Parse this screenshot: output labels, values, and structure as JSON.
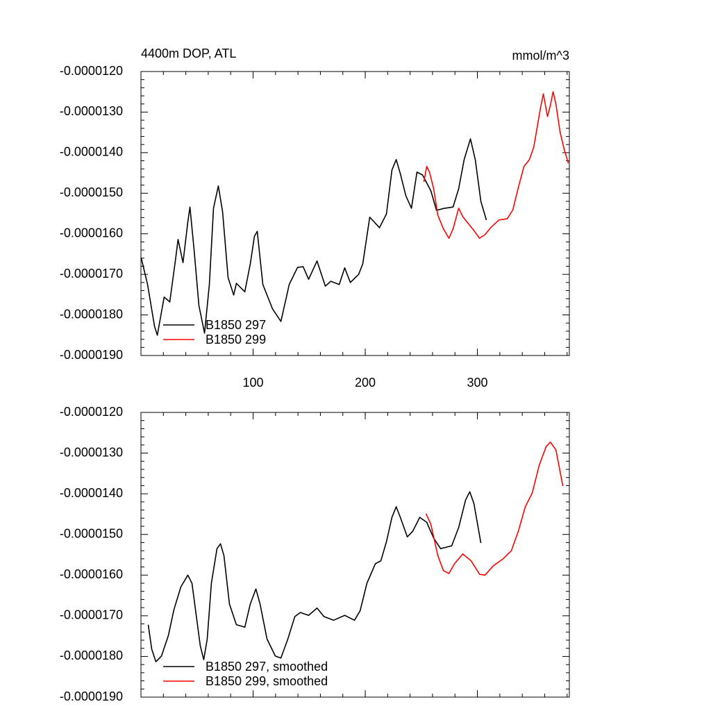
{
  "chart_data": [
    {
      "type": "line",
      "title": "4400m DOP, ATL",
      "right_title": "mmol/m^3",
      "xlim": [
        0,
        382
      ],
      "xticks": [
        100,
        200,
        300
      ],
      "xtick_labels": true,
      "ylim": [
        -1.9e-05,
        -1.2e-05
      ],
      "yticks": [
        {
          "value": -1.9e-05,
          "label": "-0.0000190"
        },
        {
          "value": -1.8e-05,
          "label": "-0.0000180"
        },
        {
          "value": -1.7e-05,
          "label": "-0.0000170"
        },
        {
          "value": -1.6e-05,
          "label": "-0.0000160"
        },
        {
          "value": -1.5e-05,
          "label": "-0.0000150"
        },
        {
          "value": -1.4e-05,
          "label": "-0.0000140"
        },
        {
          "value": -1.3e-05,
          "label": "-0.0000130"
        },
        {
          "value": -1.2e-05,
          "label": "-0.0000120"
        }
      ],
      "legend": "lower left",
      "series": [
        {
          "name": "B1850 297",
          "color": "#000000",
          "x": [
            0.3,
            5.9,
            12.1,
            14.6,
            20.7,
            25.7,
            30.7,
            33.1,
            37.5,
            41.8,
            43.7,
            47.4,
            51.7,
            56.7,
            61.0,
            64.7,
            69.0,
            72.8,
            77.7,
            82.7,
            85.1,
            92.6,
            97.5,
            101.2,
            103.7,
            108.7,
            117.3,
            124.8,
            132.2,
            139.6,
            144.6,
            149.5,
            157.0,
            164.4,
            169.3,
            176.8,
            181.7,
            186.7,
            194.1,
            197.8,
            204.0,
            212.7,
            218.9,
            223.8,
            227.6,
            231.3,
            236.2,
            241.2,
            246.1,
            251.1,
            258.5,
            263.5,
            270.9,
            278.3,
            283.3,
            288.2,
            293.8,
            298.1,
            303.1,
            308.0
          ],
          "values": [
            -1.66e-05,
            -1.725e-05,
            -1.828e-05,
            -1.85e-05,
            -1.756e-05,
            -1.768e-05,
            -1.666e-05,
            -1.614e-05,
            -1.671e-05,
            -1.571e-05,
            -1.534e-05,
            -1.64e-05,
            -1.777e-05,
            -1.845e-05,
            -1.725e-05,
            -1.537e-05,
            -1.482e-05,
            -1.546e-05,
            -1.708e-05,
            -1.751e-05,
            -1.722e-05,
            -1.743e-05,
            -1.674e-05,
            -1.606e-05,
            -1.594e-05,
            -1.725e-05,
            -1.785e-05,
            -1.816e-05,
            -1.725e-05,
            -1.683e-05,
            -1.681e-05,
            -1.712e-05,
            -1.667e-05,
            -1.729e-05,
            -1.717e-05,
            -1.725e-05,
            -1.684e-05,
            -1.72e-05,
            -1.7e-05,
            -1.674e-05,
            -1.559e-05,
            -1.585e-05,
            -1.551e-05,
            -1.443e-05,
            -1.417e-05,
            -1.452e-05,
            -1.506e-05,
            -1.537e-05,
            -1.448e-05,
            -1.455e-05,
            -1.494e-05,
            -1.542e-05,
            -1.537e-05,
            -1.534e-05,
            -1.489e-05,
            -1.417e-05,
            -1.366e-05,
            -1.417e-05,
            -1.52e-05,
            -1.566e-05
          ]
        },
        {
          "name": "B1850 299",
          "color": "#ff0000",
          "x": [
            252.3,
            254.8,
            257.3,
            261.0,
            264.7,
            269.7,
            274.6,
            278.3,
            283.3,
            287.0,
            292.0,
            296.9,
            301.9,
            306.8,
            311.8,
            319.2,
            326.6,
            331.6,
            336.5,
            341.5,
            346.4,
            350.2,
            352.6,
            356.3,
            358.8,
            362.5,
            365.0,
            367.5,
            370.0,
            373.7,
            377.4,
            381.1
          ],
          "values": [
            -1.472e-05,
            -1.434e-05,
            -1.448e-05,
            -1.489e-05,
            -1.554e-05,
            -1.588e-05,
            -1.611e-05,
            -1.588e-05,
            -1.537e-05,
            -1.558e-05,
            -1.575e-05,
            -1.592e-05,
            -1.611e-05,
            -1.602e-05,
            -1.585e-05,
            -1.566e-05,
            -1.563e-05,
            -1.541e-05,
            -1.486e-05,
            -1.434e-05,
            -1.417e-05,
            -1.387e-05,
            -1.349e-05,
            -1.289e-05,
            -1.255e-05,
            -1.311e-05,
            -1.284e-05,
            -1.25e-05,
            -1.28e-05,
            -1.349e-05,
            -1.392e-05,
            -1.426e-05
          ]
        }
      ]
    },
    {
      "type": "line",
      "xlim": [
        0,
        382
      ],
      "xticks": [
        100,
        200,
        300
      ],
      "xtick_labels": false,
      "ylim": [
        -1.9e-05,
        -1.2e-05
      ],
      "yticks": [
        {
          "value": -1.9e-05,
          "label": "-0.0000190"
        },
        {
          "value": -1.8e-05,
          "label": "-0.0000180"
        },
        {
          "value": -1.7e-05,
          "label": "-0.0000170"
        },
        {
          "value": -1.6e-05,
          "label": "-0.0000160"
        },
        {
          "value": -1.5e-05,
          "label": "-0.0000150"
        },
        {
          "value": -1.4e-05,
          "label": "-0.0000140"
        },
        {
          "value": -1.3e-05,
          "label": "-0.0000130"
        },
        {
          "value": -1.2e-05,
          "label": "-0.0000120"
        }
      ],
      "legend": "lower left",
      "series": [
        {
          "name": "B1850 297, smoothed",
          "color": "#000000",
          "x": [
            6.5,
            9.6,
            13.3,
            18.3,
            24.5,
            29.4,
            35.6,
            41.8,
            45.5,
            49.2,
            52.9,
            56.0,
            59.1,
            62.8,
            67.8,
            70.9,
            74.0,
            78.9,
            85.1,
            92.6,
            97.5,
            102.5,
            106.2,
            112.4,
            119.8,
            124.8,
            131.0,
            137.2,
            142.1,
            149.5,
            157.0,
            163.2,
            171.8,
            181.7,
            190.4,
            195.4,
            201.5,
            209.0,
            213.9,
            218.9,
            223.8,
            227.6,
            231.3,
            237.5,
            242.4,
            248.6,
            254.8,
            261.0,
            267.2,
            277.1,
            283.3,
            289.5,
            293.2,
            296.9,
            303.1
          ],
          "values": [
            -1.722e-05,
            -1.782e-05,
            -1.813e-05,
            -1.799e-05,
            -1.748e-05,
            -1.685e-05,
            -1.629e-05,
            -1.6e-05,
            -1.62e-05,
            -1.697e-05,
            -1.774e-05,
            -1.808e-05,
            -1.757e-05,
            -1.62e-05,
            -1.535e-05,
            -1.523e-05,
            -1.552e-05,
            -1.671e-05,
            -1.722e-05,
            -1.728e-05,
            -1.671e-05,
            -1.634e-05,
            -1.671e-05,
            -1.757e-05,
            -1.799e-05,
            -1.804e-05,
            -1.757e-05,
            -1.702e-05,
            -1.692e-05,
            -1.699e-05,
            -1.681e-05,
            -1.702e-05,
            -1.711e-05,
            -1.699e-05,
            -1.711e-05,
            -1.688e-05,
            -1.62e-05,
            -1.572e-05,
            -1.565e-05,
            -1.518e-05,
            -1.458e-05,
            -1.432e-05,
            -1.458e-05,
            -1.506e-05,
            -1.492e-05,
            -1.458e-05,
            -1.47e-05,
            -1.509e-05,
            -1.535e-05,
            -1.528e-05,
            -1.483e-05,
            -1.415e-05,
            -1.395e-05,
            -1.424e-05,
            -1.521e-05
          ]
        },
        {
          "name": "B1850 299, smoothed",
          "color": "#ff0000",
          "x": [
            254.2,
            258.5,
            264.7,
            269.7,
            274.6,
            279.6,
            287.0,
            294.4,
            301.9,
            306.8,
            314.2,
            322.9,
            330.3,
            336.5,
            342.7,
            348.9,
            355.1,
            361.3,
            365.0,
            370.0,
            376.2
          ],
          "values": [
            -1.449e-05,
            -1.475e-05,
            -1.552e-05,
            -1.589e-05,
            -1.596e-05,
            -1.572e-05,
            -1.548e-05,
            -1.565e-05,
            -1.598e-05,
            -1.6e-05,
            -1.577e-05,
            -1.56e-05,
            -1.54e-05,
            -1.492e-05,
            -1.432e-05,
            -1.398e-05,
            -1.33e-05,
            -1.284e-05,
            -1.273e-05,
            -1.292e-05,
            -1.381e-05
          ]
        }
      ]
    }
  ]
}
